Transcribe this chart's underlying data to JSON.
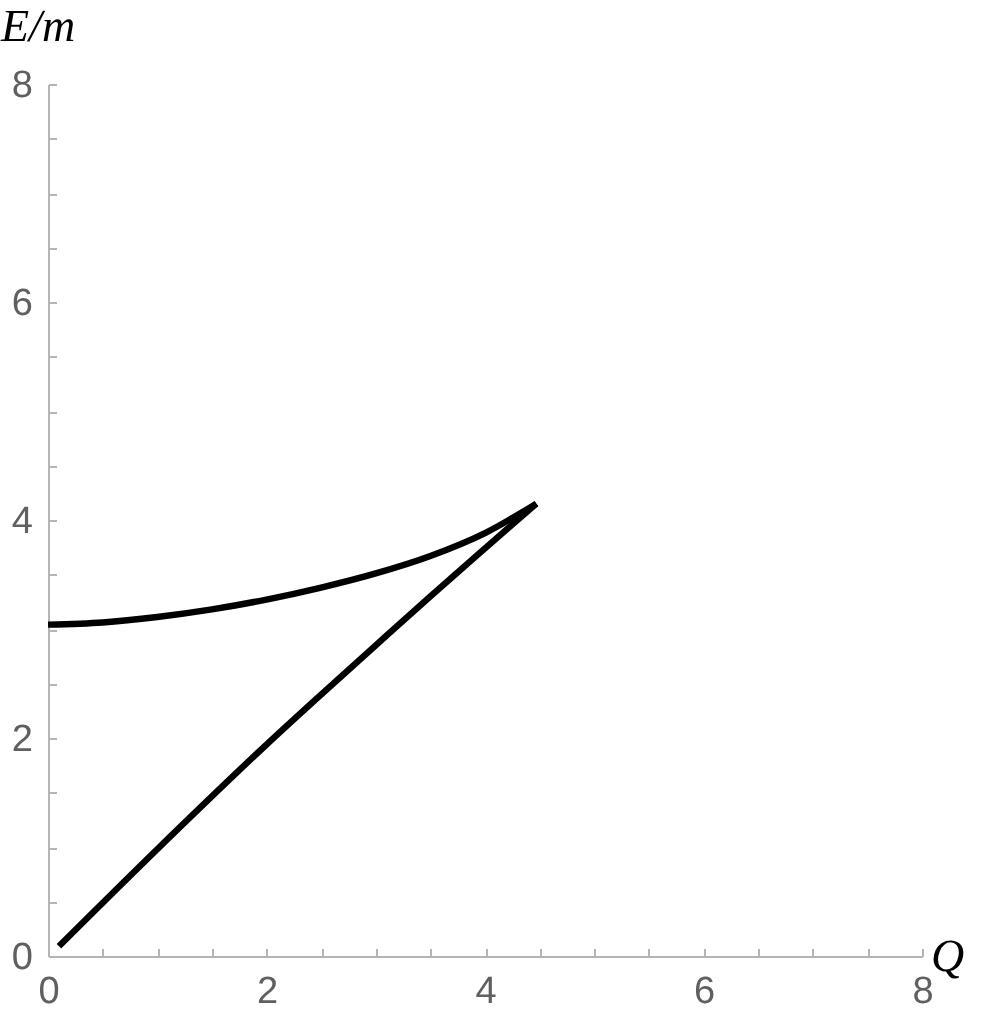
{
  "chart_data": {
    "type": "line",
    "xlabel": "Q",
    "ylabel": "E/m",
    "xlim": [
      0,
      8
    ],
    "ylim": [
      0,
      8
    ],
    "xticks": [
      0,
      {
        "value": 0.5,
        "label": null
      },
      {
        "value": 1,
        "label": null
      },
      {
        "value": 1.5,
        "label": null
      },
      2,
      {
        "value": 2.5,
        "label": null
      },
      {
        "value": 3,
        "label": null
      },
      {
        "value": 3.5,
        "label": null
      },
      4,
      {
        "value": 4.5,
        "label": null
      },
      {
        "value": 5,
        "label": null
      },
      {
        "value": 5.5,
        "label": null
      },
      6,
      {
        "value": 6.5,
        "label": null
      },
      {
        "value": 7,
        "label": null
      },
      {
        "value": 7.5,
        "label": null
      },
      8
    ],
    "yticks": [
      0,
      {
        "value": 0.5,
        "label": null
      },
      {
        "value": 1,
        "label": null
      },
      {
        "value": 1.5,
        "label": null
      },
      2,
      {
        "value": 2.5,
        "label": null
      },
      {
        "value": 3,
        "label": null
      },
      {
        "value": 3.5,
        "label": null
      },
      4,
      {
        "value": 4.5,
        "label": null
      },
      {
        "value": 5,
        "label": null
      },
      {
        "value": 5.5,
        "label": null
      },
      6,
      {
        "value": 6.5,
        "label": null
      },
      {
        "value": 7,
        "label": null
      },
      {
        "value": 7.5,
        "label": null
      },
      8
    ],
    "grid": false,
    "series": [
      {
        "color": "#000000",
        "x": [
          0,
          0.5,
          1,
          1.5,
          2,
          2.5,
          3,
          3.5,
          4,
          4.47
        ],
        "values": [
          3.04,
          3.06,
          3.11,
          3.18,
          3.27,
          3.38,
          3.51,
          3.67,
          3.88,
          4.15
        ]
      },
      {
        "color": "#000000",
        "x": [
          0.1,
          1,
          2,
          3,
          3.5,
          4,
          4.47
        ],
        "values": [
          0.09,
          0.98,
          1.94,
          2.85,
          3.3,
          3.74,
          4.15
        ]
      }
    ]
  }
}
